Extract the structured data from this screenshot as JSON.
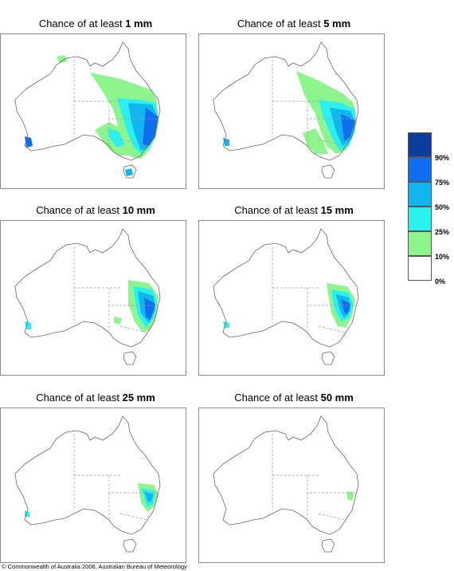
{
  "panels": [
    {
      "prefix": "Chance of at least ",
      "value": "1 mm"
    },
    {
      "prefix": "Chance of at least ",
      "value": "5 mm"
    },
    {
      "prefix": "Chance of at least ",
      "value": "10 mm"
    },
    {
      "prefix": "Chance of at least ",
      "value": "15 mm"
    },
    {
      "prefix": "Chance of at least ",
      "value": "25 mm"
    },
    {
      "prefix": "Chance of at least ",
      "value": "50 mm"
    }
  ],
  "legend": {
    "labels": [
      "90%",
      "75%",
      "50%",
      "25%",
      "10%",
      "0%"
    ],
    "colors": [
      "#0a3d9c",
      "#0d6ef0",
      "#10b6ee",
      "#2af0f0",
      "#8ef58e",
      "#ffffff"
    ]
  },
  "copyright": "© Commonwealth of Australia 2006, Australian Bureau of Meteorology"
}
